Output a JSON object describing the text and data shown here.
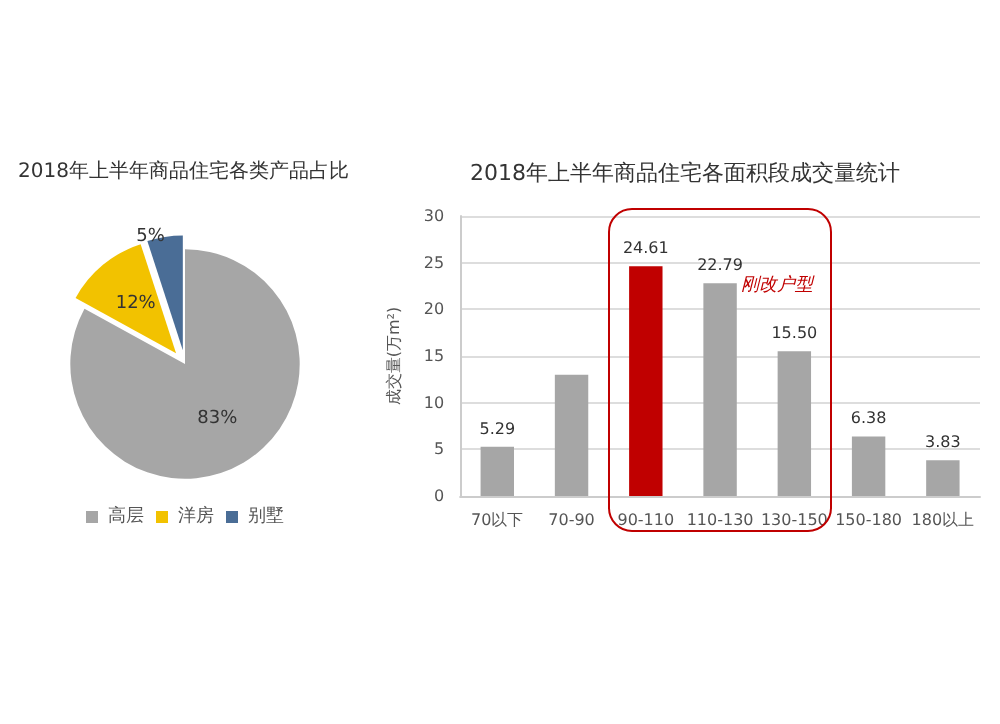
{
  "chart_data": [
    {
      "type": "pie",
      "title": "2018年上半年商品住宅各类产品占比",
      "categories": [
        "高层",
        "洋房",
        "别墅"
      ],
      "values": [
        83,
        12,
        5
      ],
      "colors": [
        "#a6a6a6",
        "#f2c200",
        "#4a6d96"
      ],
      "value_labels": [
        "83%",
        "12%",
        "5%"
      ],
      "legend": "bottom"
    },
    {
      "type": "bar",
      "title": "2018年上半年商品住宅各面积段成交量统计",
      "ylabel": "成交量(万m²)",
      "categories": [
        "70以下",
        "70-90",
        "90-110",
        "110-130",
        "130-150",
        "150-180",
        "180以上"
      ],
      "values": [
        5.29,
        13,
        24.61,
        22.79,
        15.5,
        6.38,
        3.83
      ],
      "colors": [
        "#a6a6a6",
        "#a6a6a6",
        "#c00000",
        "#a6a6a6",
        "#a6a6a6",
        "#a6a6a6",
        "#a6a6a6"
      ],
      "value_labels": [
        "5.29",
        null,
        "24.61",
        "22.79",
        "15.50",
        "6.38",
        "3.83"
      ],
      "ylim": [
        0,
        30
      ],
      "yticks": [
        0,
        5,
        10,
        15,
        20,
        25,
        30
      ],
      "grid": "y",
      "annotations": [
        "刚改户型"
      ]
    }
  ]
}
